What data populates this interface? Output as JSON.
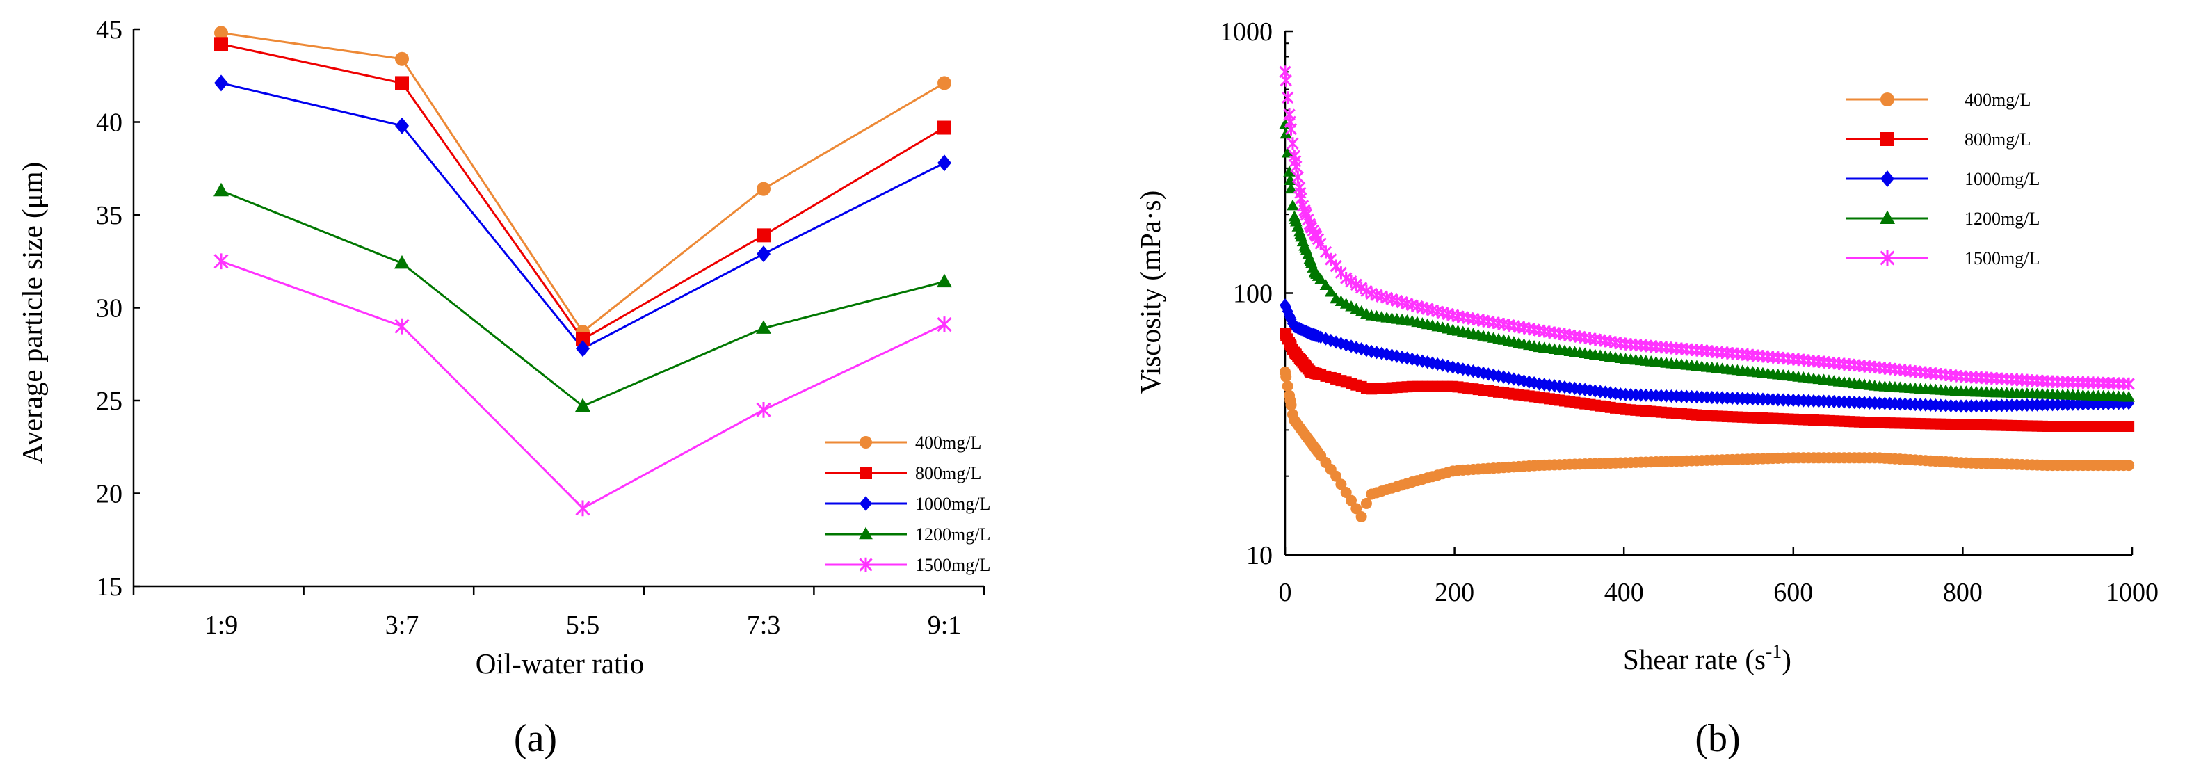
{
  "colors": {
    "s400": "#ED8936",
    "s800": "#EE0000",
    "s1000": "#0000EE",
    "s1200": "#007700",
    "s1500": "#FF33FF"
  },
  "panels": [
    "(a)",
    "(b)"
  ],
  "chart_data": [
    {
      "type": "line",
      "xlabel": "Oil-water ratio",
      "ylabel": "Average particle size  (μm)",
      "categories": [
        "1:9",
        "3:7",
        "5:5",
        "7:3",
        "9:1"
      ],
      "ylim": [
        15,
        45
      ],
      "yticks": [
        "15",
        "20",
        "25",
        "30",
        "35",
        "40",
        "45"
      ],
      "legend_position": "bottom-right",
      "grid": false,
      "series": [
        {
          "name": "400mg/L",
          "marker": "circle",
          "color": "#ED8936",
          "values": [
            44.8,
            43.4,
            28.7,
            36.4,
            42.1
          ]
        },
        {
          "name": "800mg/L",
          "marker": "square",
          "color": "#EE0000",
          "values": [
            44.2,
            42.1,
            28.3,
            33.9,
            39.7
          ]
        },
        {
          "name": "1000mg/L",
          "marker": "diamond",
          "color": "#0000EE",
          "values": [
            42.1,
            39.8,
            27.8,
            32.9,
            37.8
          ]
        },
        {
          "name": "1200mg/L",
          "marker": "triangle",
          "color": "#007700",
          "values": [
            36.3,
            32.4,
            24.7,
            28.9,
            31.4
          ]
        },
        {
          "name": "1500mg/L",
          "marker": "star",
          "color": "#FF33FF",
          "values": [
            32.5,
            29.0,
            19.2,
            24.5,
            29.1
          ]
        }
      ]
    },
    {
      "type": "scatter",
      "xlabel": "Shear rate (s",
      "xlabel_sup": "-1",
      "xlabel_end": ")",
      "ylabel": "Viscosity (mPa·s)",
      "xlim": [
        0,
        1000
      ],
      "xticks": [
        "0",
        "200",
        "400",
        "600",
        "800",
        "1000"
      ],
      "ylim": [
        10,
        1000
      ],
      "yscale": "log",
      "yticks": [
        "10",
        "100",
        "1000"
      ],
      "legend_position": "top-right",
      "grid": false,
      "series": [
        {
          "name": "400mg/L",
          "marker": "circle",
          "color": "#ED8936",
          "x": [
            0,
            10,
            30,
            60,
            90,
            100,
            150,
            200,
            300,
            400,
            500,
            600,
            700,
            800,
            900,
            1000
          ],
          "y": [
            50,
            33,
            27,
            20,
            14,
            17,
            19,
            21,
            22,
            22.5,
            23,
            23.5,
            23.5,
            22.5,
            22,
            22
          ]
        },
        {
          "name": "800mg/L",
          "marker": "square",
          "color": "#EE0000",
          "x": [
            0,
            10,
            30,
            60,
            100,
            150,
            200,
            300,
            400,
            500,
            600,
            700,
            800,
            900,
            1000
          ],
          "y": [
            70,
            60,
            50,
            47,
            43,
            44,
            44,
            40,
            36,
            34,
            33,
            32,
            31.5,
            31,
            31
          ]
        },
        {
          "name": "1000mg/L",
          "marker": "diamond",
          "color": "#0000EE",
          "x": [
            0,
            10,
            30,
            60,
            100,
            150,
            200,
            300,
            400,
            500,
            600,
            700,
            800,
            900,
            1000
          ],
          "y": [
            90,
            75,
            70,
            65,
            60,
            56,
            52,
            45,
            41,
            40,
            39,
            38,
            37,
            37.5,
            38
          ]
        },
        {
          "name": "1200mg/L",
          "marker": "triangle",
          "color": "#007700",
          "x": [
            0,
            5,
            10,
            20,
            35,
            50,
            60,
            80,
            100,
            150,
            200,
            300,
            400,
            500,
            600,
            700,
            800,
            900,
            1000
          ],
          "y": [
            440,
            290,
            200,
            160,
            120,
            105,
            95,
            88,
            82,
            78,
            72,
            62,
            56,
            52,
            48,
            44,
            42,
            41,
            40
          ]
        },
        {
          "name": "1500mg/L",
          "marker": "star",
          "color": "#FF33FF",
          "x": [
            0,
            5,
            10,
            20,
            30,
            50,
            70,
            100,
            150,
            200,
            300,
            400,
            500,
            600,
            700,
            800,
            900,
            1000
          ],
          "y": [
            700,
            480,
            350,
            220,
            180,
            140,
            115,
            100,
            90,
            82,
            72,
            64,
            60,
            56,
            52,
            48,
            46,
            45
          ]
        }
      ]
    }
  ]
}
